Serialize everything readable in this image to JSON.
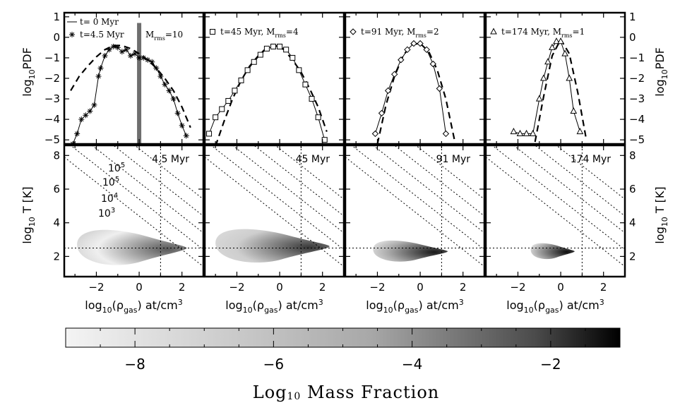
{
  "chart_data": {
    "type": "line",
    "title": "Gas density PDF and density-temperature phase diagrams",
    "panels": [
      {
        "time_myr": 4.5,
        "time_label": "4.5  Myr",
        "legend": [
          "t=  0 Myr",
          "t=4.5 Myr",
          "M",
          "rms",
          "=10"
        ],
        "marker": "asterisk",
        "initial_series_label": "t=  0 Myr",
        "pdf_x": [
          -3.1,
          -2.9,
          -2.7,
          -2.5,
          -2.3,
          -2.1,
          -1.9,
          -1.8,
          -1.6,
          -1.4,
          -1.2,
          -1.0,
          -0.8,
          -0.6,
          -0.4,
          -0.2,
          0.0,
          0.2,
          0.4,
          0.6,
          0.8,
          1.0,
          1.2,
          1.4,
          1.6,
          1.8,
          2.0,
          2.2
        ],
        "pdf_y": [
          -5.2,
          -4.7,
          -4.0,
          -3.8,
          -3.6,
          -3.3,
          -1.9,
          -1.5,
          -0.9,
          -0.6,
          -0.45,
          -0.5,
          -0.7,
          -0.6,
          -0.9,
          -0.8,
          -1.0,
          -1.0,
          -1.1,
          -1.2,
          -1.5,
          -1.9,
          -2.3,
          -2.6,
          -3.0,
          -3.7,
          -4.3,
          -4.8
        ],
        "ref_x": [
          -3.2,
          -2.8,
          -2.4,
          -2.0,
          -1.6,
          -1.2,
          -0.8,
          -0.4,
          0.0,
          0.4,
          0.8,
          1.2,
          1.6,
          2.0,
          2.4
        ],
        "ref_y": [
          -2.6,
          -1.9,
          -1.4,
          -0.95,
          -0.6,
          -0.4,
          -0.4,
          -0.55,
          -0.8,
          -1.1,
          -1.5,
          -2.0,
          -2.6,
          -3.4,
          -4.4
        ],
        "bar_x": 0.0,
        "bar_top": 0.7,
        "phase_center_x": -0.4,
        "phase_halfwidth_x": 2.5,
        "phase_y": 2.5,
        "phase_halfheight": 1.0,
        "phase_darkness": 0.65,
        "isobar_labels": [
          "10",
          "5",
          "10",
          "5",
          "10",
          "4",
          "10",
          "3"
        ]
      },
      {
        "time_myr": 45,
        "time_label": "45  Myr",
        "legend": [
          "t=45 Myr, M",
          "rms",
          "=4"
        ],
        "marker": "square",
        "pdf_x": [
          -3.3,
          -3.0,
          -2.7,
          -2.4,
          -2.1,
          -1.8,
          -1.5,
          -1.2,
          -0.9,
          -0.6,
          -0.3,
          0.0,
          0.3,
          0.6,
          0.9,
          1.2,
          1.5,
          1.8,
          2.1
        ],
        "pdf_y": [
          -4.7,
          -3.9,
          -3.5,
          -3.1,
          -2.6,
          -2.1,
          -1.6,
          -1.2,
          -0.85,
          -0.55,
          -0.45,
          -0.45,
          -0.6,
          -1.0,
          -1.6,
          -2.3,
          -3.0,
          -3.9,
          -5.0
        ],
        "ref_x": [
          -3.0,
          -2.6,
          -2.2,
          -1.8,
          -1.4,
          -1.0,
          -0.6,
          -0.2,
          0.2,
          0.6,
          1.0,
          1.4,
          1.8,
          2.2
        ],
        "ref_y": [
          -5.3,
          -4.1,
          -3.0,
          -2.1,
          -1.4,
          -0.9,
          -0.5,
          -0.4,
          -0.6,
          -1.1,
          -1.7,
          -2.5,
          -3.4,
          -4.6
        ],
        "phase_center_x": -0.4,
        "phase_halfwidth_x": 2.6,
        "phase_y": 2.6,
        "phase_halfheight": 0.95,
        "phase_darkness": 0.78
      },
      {
        "time_myr": 91,
        "time_label": "91  Myr",
        "legend": [
          "t=91 Myr, M",
          "rms",
          "=2"
        ],
        "marker": "diamond",
        "pdf_x": [
          -2.1,
          -1.8,
          -1.5,
          -1.2,
          -0.9,
          -0.6,
          -0.3,
          0.0,
          0.3,
          0.6,
          0.9,
          1.2
        ],
        "pdf_y": [
          -4.7,
          -3.7,
          -2.6,
          -1.8,
          -1.1,
          -0.6,
          -0.3,
          -0.3,
          -0.6,
          -1.3,
          -2.5,
          -4.7
        ],
        "ref_x": [
          -2.0,
          -1.6,
          -1.2,
          -0.8,
          -0.4,
          0.0,
          0.4,
          0.8,
          1.2,
          1.6
        ],
        "ref_y": [
          -5.2,
          -3.3,
          -1.9,
          -0.9,
          -0.35,
          -0.3,
          -0.7,
          -1.6,
          -3.0,
          -5.0
        ],
        "phase_center_x": -0.5,
        "phase_halfwidth_x": 1.7,
        "phase_y": 2.3,
        "phase_halfheight": 0.6,
        "phase_darkness": 0.9
      },
      {
        "time_myr": 174,
        "time_label": "174 Myr",
        "legend": [
          "t=174 Myr, M",
          "rms",
          "=1"
        ],
        "marker": "triangle",
        "pdf_x": [
          -2.2,
          -1.9,
          -1.6,
          -1.3,
          -1.0,
          -0.8,
          -0.6,
          -0.4,
          -0.2,
          0.0,
          0.2,
          0.4,
          0.6,
          0.9
        ],
        "pdf_y": [
          -4.6,
          -4.7,
          -4.7,
          -4.7,
          -3.0,
          -2.0,
          -1.2,
          -0.5,
          -0.2,
          -0.2,
          -0.8,
          -2.0,
          -3.6,
          -4.6
        ],
        "ref_x": [
          -1.2,
          -0.8,
          -0.4,
          0.0,
          0.4,
          0.8,
          1.2
        ],
        "ref_y": [
          -5.1,
          -2.9,
          -0.9,
          -0.1,
          -0.8,
          -2.7,
          -5.0
        ],
        "phase_center_x": -0.4,
        "phase_halfwidth_x": 1.0,
        "phase_y": 2.3,
        "phase_halfheight": 0.45,
        "phase_darkness": 0.95
      }
    ],
    "pdf_axis": {
      "ylabel": "log10PDF",
      "ylabel_parts": [
        "log",
        "10",
        "PDF"
      ],
      "ylim": [
        -5.2,
        1.2
      ],
      "yticks": [
        1,
        0,
        -1,
        -2,
        -3,
        -4,
        -5
      ],
      "yticklabels": [
        "1",
        "0",
        "−1",
        "−2",
        "−3",
        "−4",
        "−5"
      ]
    },
    "phase_axis": {
      "ylabel": "log10 T [K]",
      "ylabel_parts": [
        "log",
        "10",
        " T [K]"
      ],
      "ylim": [
        0.8,
        8.6
      ],
      "yticks": [
        2,
        4,
        6,
        8
      ],
      "yticklabels": [
        "2",
        "4",
        "6",
        "8"
      ],
      "t_line": 2.5,
      "rho_line": 1.0
    },
    "x_axis": {
      "xlabel": "log10(rho_gas) at/cm3",
      "xlabel_parts": [
        "log",
        "10",
        "(ρ",
        "gas",
        ") at/cm",
        "3"
      ],
      "xlim": [
        -3.5,
        3.0
      ],
      "xticks": [
        -2,
        0,
        2
      ],
      "xticklabels": [
        "−2",
        "0",
        "2"
      ]
    },
    "colorbar": {
      "label": "Log10 Mass Fraction",
      "label_parts": [
        "Log",
        "10",
        " Mass Fraction"
      ],
      "range": [
        -9.0,
        -1.0
      ],
      "ticks": [
        -8,
        -6,
        -4,
        -2
      ],
      "ticklabels": [
        "−8",
        "−6",
        "−4",
        "−2"
      ],
      "color_light": "#f4f4f4",
      "color_dark": "#000000"
    }
  }
}
